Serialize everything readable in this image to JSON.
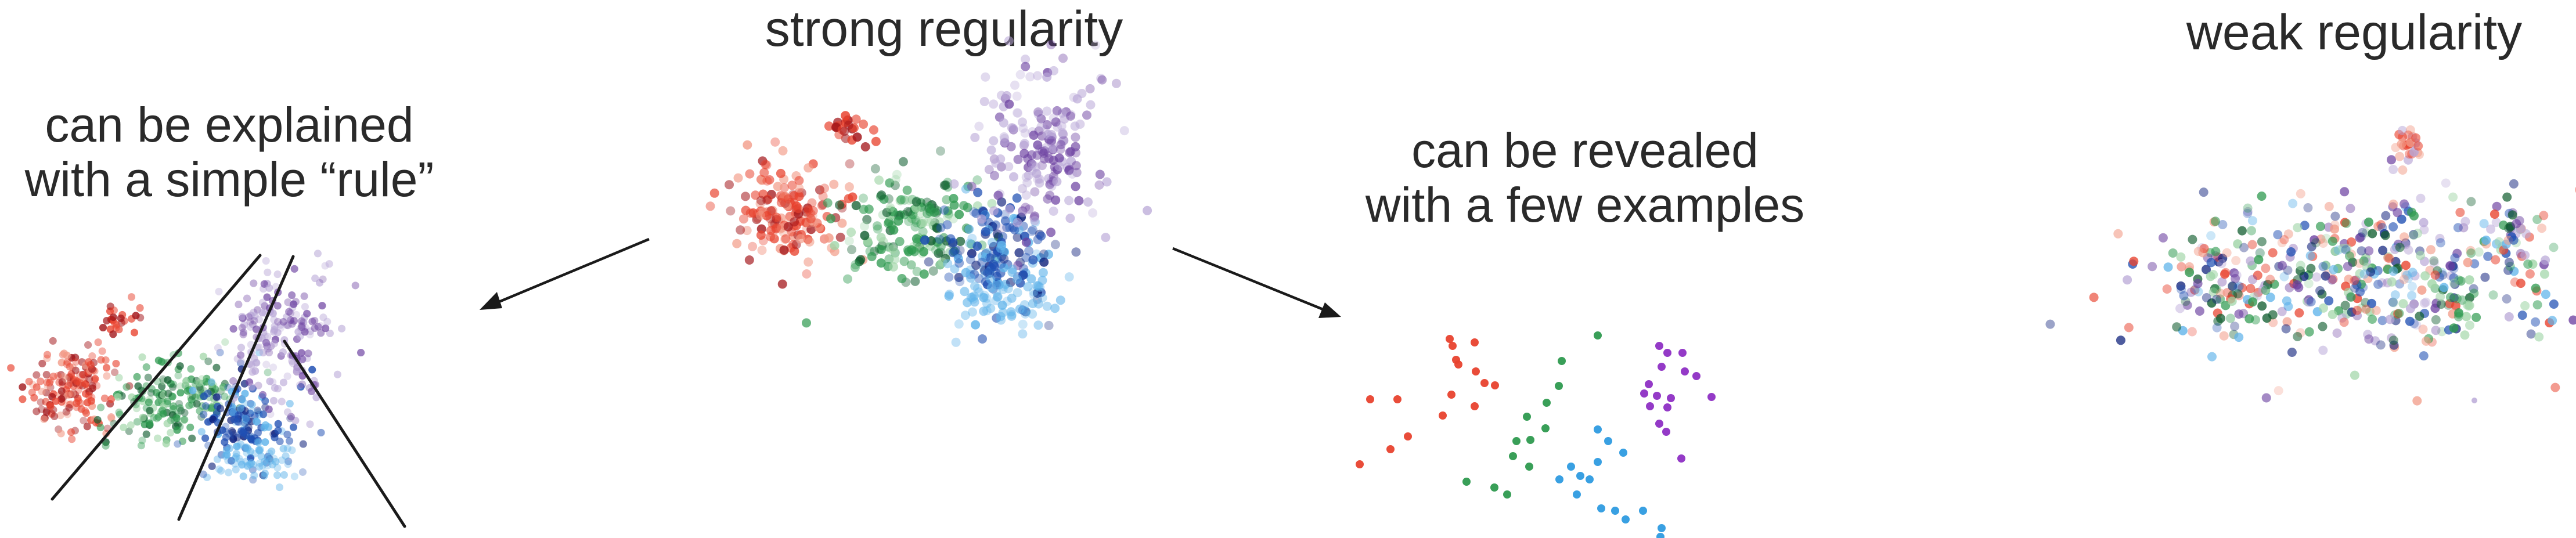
{
  "titles": {
    "strong": "strong regularity",
    "weak": "weak regularity"
  },
  "captions": {
    "rule_line1": "can be explained",
    "rule_line2": "with a simple “rule”",
    "examples_line1": "can be revealed",
    "examples_line2": "with a few examples"
  },
  "colors": {
    "red": "#e8422e",
    "dark_red": "#a3161a",
    "salmon": "#f29a86",
    "green": "#2e9a4f",
    "dark_green": "#0f5c2e",
    "light_green": "#9fd5a6",
    "blue": "#1f4fb3",
    "dark_blue": "#0d1f7a",
    "light_blue": "#5fb3ea",
    "purple": "#6b3fa0",
    "light_purple": "#b7a5d6",
    "dot_purple": "#8e2fc4",
    "dot_blue": "#2e9be0",
    "arrow": "#1a1a1a"
  }
}
